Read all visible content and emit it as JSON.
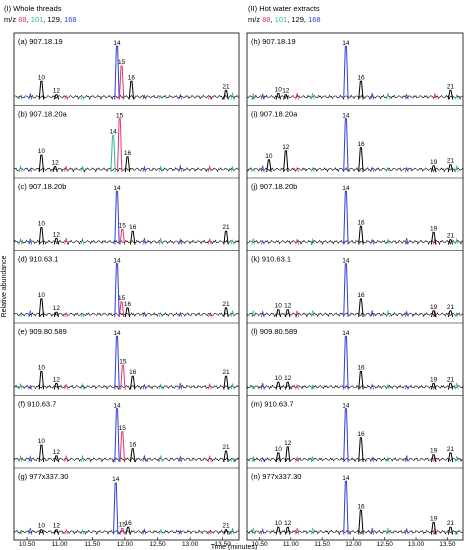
{
  "legend": {
    "prefix": "m/z",
    "ions": [
      {
        "label": "88",
        "color": "#e8336d"
      },
      {
        "label": "101",
        "color": "#2bb5a6"
      },
      {
        "label": "129",
        "color": "#000000"
      },
      {
        "label": "168",
        "color": "#2c3fd6"
      }
    ]
  },
  "chart_data": [
    {
      "type": "line",
      "title": "(I) Whole threads",
      "xlabel": "Time (minutes)",
      "ylabel": "Relative abundance",
      "xlim": [
        10.3,
        13.75
      ],
      "x_ticks": [
        "10.50",
        "11.00",
        "11.50",
        "12.00",
        "12.50",
        "13.00",
        "13.50"
      ],
      "panels": [
        {
          "label": "(a) 907.18.19",
          "peaks": [
            {
              "x": 10.72,
              "h": 0.3,
              "c": "#000000",
              "lab": "10"
            },
            {
              "x": 10.95,
              "h": 0.08,
              "c": "#000000",
              "lab": "12"
            },
            {
              "x": 11.88,
              "h": 0.88,
              "c": "#2c3fd6",
              "lab": "14"
            },
            {
              "x": 11.95,
              "h": 0.55,
              "c": "#e8336d",
              "lab": "15"
            },
            {
              "x": 12.1,
              "h": 0.3,
              "c": "#000000",
              "lab": "16"
            },
            {
              "x": 13.55,
              "h": 0.15,
              "c": "#000000",
              "lab": "21"
            }
          ]
        },
        {
          "label": "(b) 907.18.20a",
          "peaks": [
            {
              "x": 10.72,
              "h": 0.28,
              "c": "#000000",
              "lab": "10"
            },
            {
              "x": 10.93,
              "h": 0.09,
              "c": "#000000",
              "lab": "12"
            },
            {
              "x": 11.82,
              "h": 0.6,
              "c": "#2bb5a6",
              "lab": "14"
            },
            {
              "x": 11.92,
              "h": 0.88,
              "c": "#e8336d",
              "lab": "15"
            },
            {
              "x": 12.04,
              "h": 0.25,
              "c": "#000000",
              "lab": "16"
            }
          ]
        },
        {
          "label": "(c) 907.18.20b",
          "peaks": [
            {
              "x": 10.72,
              "h": 0.28,
              "c": "#000000",
              "lab": "10"
            },
            {
              "x": 10.95,
              "h": 0.1,
              "c": "#000000",
              "lab": "12"
            },
            {
              "x": 11.88,
              "h": 0.88,
              "c": "#2c3fd6",
              "lab": "14"
            },
            {
              "x": 11.96,
              "h": 0.25,
              "c": "#e8336d",
              "lab": "15"
            },
            {
              "x": 12.12,
              "h": 0.22,
              "c": "#000000",
              "lab": "16"
            },
            {
              "x": 13.55,
              "h": 0.22,
              "c": "#000000",
              "lab": "21"
            }
          ]
        },
        {
          "label": "(d) 910.63.1",
          "peaks": [
            {
              "x": 10.72,
              "h": 0.3,
              "c": "#000000",
              "lab": "10"
            },
            {
              "x": 10.95,
              "h": 0.08,
              "c": "#000000",
              "lab": "12"
            },
            {
              "x": 11.88,
              "h": 0.88,
              "c": "#2c3fd6",
              "lab": "14"
            },
            {
              "x": 11.95,
              "h": 0.25,
              "c": "#e8336d",
              "lab": "15"
            },
            {
              "x": 12.04,
              "h": 0.15,
              "c": "#000000",
              "lab": "16"
            },
            {
              "x": 13.55,
              "h": 0.15,
              "c": "#000000",
              "lab": "21"
            }
          ]
        },
        {
          "label": "(e) 909.80.589",
          "peaks": [
            {
              "x": 10.72,
              "h": 0.3,
              "c": "#000000",
              "lab": "10"
            },
            {
              "x": 10.95,
              "h": 0.1,
              "c": "#000000",
              "lab": "12"
            },
            {
              "x": 11.88,
              "h": 0.88,
              "c": "#2c3fd6",
              "lab": "14"
            },
            {
              "x": 11.97,
              "h": 0.4,
              "c": "#e8336d",
              "lab": "15"
            },
            {
              "x": 12.12,
              "h": 0.22,
              "c": "#000000",
              "lab": "16"
            },
            {
              "x": 13.55,
              "h": 0.22,
              "c": "#000000",
              "lab": "21"
            }
          ]
        },
        {
          "label": "(f) 910.63.7",
          "peaks": [
            {
              "x": 10.72,
              "h": 0.28,
              "c": "#000000",
              "lab": "10"
            },
            {
              "x": 10.95,
              "h": 0.1,
              "c": "#000000",
              "lab": "12"
            },
            {
              "x": 11.88,
              "h": 0.88,
              "c": "#2c3fd6",
              "lab": "14"
            },
            {
              "x": 11.96,
              "h": 0.5,
              "c": "#e8336d",
              "lab": "15"
            },
            {
              "x": 12.12,
              "h": 0.22,
              "c": "#000000",
              "lab": "16"
            },
            {
              "x": 13.55,
              "h": 0.18,
              "c": "#000000",
              "lab": "21"
            }
          ]
        },
        {
          "label": "(g) 977x337.30",
          "peaks": [
            {
              "x": 10.72,
              "h": 0.08,
              "c": "#000000",
              "lab": "10"
            },
            {
              "x": 10.95,
              "h": 0.08,
              "c": "#000000",
              "lab": "12"
            },
            {
              "x": 11.86,
              "h": 0.85,
              "c": "#2c3fd6",
              "lab": "14"
            },
            {
              "x": 11.96,
              "h": 0.1,
              "c": "#e8336d",
              "lab": "15"
            },
            {
              "x": 12.05,
              "h": 0.12,
              "c": "#000000",
              "lab": "16"
            },
            {
              "x": 13.55,
              "h": 0.08,
              "c": "#000000",
              "lab": "21"
            }
          ]
        }
      ]
    },
    {
      "type": "line",
      "title": "(II) Hot water extracts",
      "xlabel": "Time (minutes)",
      "ylabel": "",
      "xlim": [
        10.3,
        13.75
      ],
      "x_ticks": [
        "10.50",
        "11.00",
        "11.50",
        "12.00",
        "12.50",
        "13.00",
        "13.50"
      ],
      "panels": [
        {
          "label": "(h) 907.18.19",
          "peaks": [
            {
              "x": 10.8,
              "h": 0.1,
              "c": "#000000",
              "lab": "10"
            },
            {
              "x": 10.92,
              "h": 0.08,
              "c": "#000000",
              "lab": "12"
            },
            {
              "x": 11.88,
              "h": 0.88,
              "c": "#2c3fd6",
              "lab": "14"
            },
            {
              "x": 12.12,
              "h": 0.3,
              "c": "#000000",
              "lab": "16"
            },
            {
              "x": 13.55,
              "h": 0.15,
              "c": "#000000",
              "lab": "21"
            }
          ]
        },
        {
          "label": "(i) 907.18.20a",
          "peaks": [
            {
              "x": 10.65,
              "h": 0.2,
              "c": "#000000",
              "lab": "10"
            },
            {
              "x": 10.92,
              "h": 0.35,
              "c": "#000000",
              "lab": "12"
            },
            {
              "x": 11.88,
              "h": 0.88,
              "c": "#2c3fd6",
              "lab": "14"
            },
            {
              "x": 12.12,
              "h": 0.4,
              "c": "#000000",
              "lab": "16"
            },
            {
              "x": 13.28,
              "h": 0.1,
              "c": "#000000",
              "lab": "19"
            },
            {
              "x": 13.55,
              "h": 0.12,
              "c": "#000000",
              "lab": "21"
            }
          ]
        },
        {
          "label": "(j) 907.18.20b",
          "peaks": [
            {
              "x": 11.88,
              "h": 0.88,
              "c": "#2c3fd6",
              "lab": "14"
            },
            {
              "x": 12.12,
              "h": 0.3,
              "c": "#000000",
              "lab": "16"
            },
            {
              "x": 13.28,
              "h": 0.2,
              "c": "#000000",
              "lab": "19"
            },
            {
              "x": 13.55,
              "h": 0.08,
              "c": "#000000",
              "lab": "21"
            }
          ]
        },
        {
          "label": "(k) 910.63.1",
          "peaks": [
            {
              "x": 10.8,
              "h": 0.12,
              "c": "#000000",
              "lab": "10"
            },
            {
              "x": 10.95,
              "h": 0.12,
              "c": "#000000",
              "lab": "12"
            },
            {
              "x": 11.88,
              "h": 0.88,
              "c": "#2c3fd6",
              "lab": "14"
            },
            {
              "x": 12.12,
              "h": 0.3,
              "c": "#000000",
              "lab": "16"
            },
            {
              "x": 13.28,
              "h": 0.1,
              "c": "#000000",
              "lab": "19"
            },
            {
              "x": 13.55,
              "h": 0.1,
              "c": "#000000",
              "lab": "21"
            }
          ]
        },
        {
          "label": "(l) 909.80.589",
          "peaks": [
            {
              "x": 10.8,
              "h": 0.12,
              "c": "#000000",
              "lab": "10"
            },
            {
              "x": 10.95,
              "h": 0.12,
              "c": "#000000",
              "lab": "12"
            },
            {
              "x": 11.88,
              "h": 0.88,
              "c": "#2c3fd6",
              "lab": "14"
            },
            {
              "x": 12.12,
              "h": 0.3,
              "c": "#000000",
              "lab": "16"
            },
            {
              "x": 13.28,
              "h": 0.1,
              "c": "#000000",
              "lab": "19"
            },
            {
              "x": 13.55,
              "h": 0.1,
              "c": "#000000",
              "lab": "21"
            }
          ]
        },
        {
          "label": "(m) 910.63.7",
          "peaks": [
            {
              "x": 10.8,
              "h": 0.15,
              "c": "#000000",
              "lab": "10"
            },
            {
              "x": 10.95,
              "h": 0.25,
              "c": "#000000",
              "lab": "12"
            },
            {
              "x": 11.88,
              "h": 0.88,
              "c": "#2c3fd6",
              "lab": "14"
            },
            {
              "x": 12.12,
              "h": 0.4,
              "c": "#000000",
              "lab": "16"
            },
            {
              "x": 13.28,
              "h": 0.12,
              "c": "#000000",
              "lab": "19"
            },
            {
              "x": 13.55,
              "h": 0.15,
              "c": "#000000",
              "lab": "21"
            }
          ]
        },
        {
          "label": "(n) 977x337.30",
          "peaks": [
            {
              "x": 10.8,
              "h": 0.12,
              "c": "#000000",
              "lab": "10"
            },
            {
              "x": 10.95,
              "h": 0.12,
              "c": "#000000",
              "lab": "12"
            },
            {
              "x": 11.88,
              "h": 0.88,
              "c": "#2c3fd6",
              "lab": "14"
            },
            {
              "x": 12.12,
              "h": 0.4,
              "c": "#000000",
              "lab": "16"
            },
            {
              "x": 13.28,
              "h": 0.2,
              "c": "#000000",
              "lab": "19"
            },
            {
              "x": 13.55,
              "h": 0.12,
              "c": "#000000",
              "lab": "21"
            }
          ]
        }
      ]
    }
  ]
}
